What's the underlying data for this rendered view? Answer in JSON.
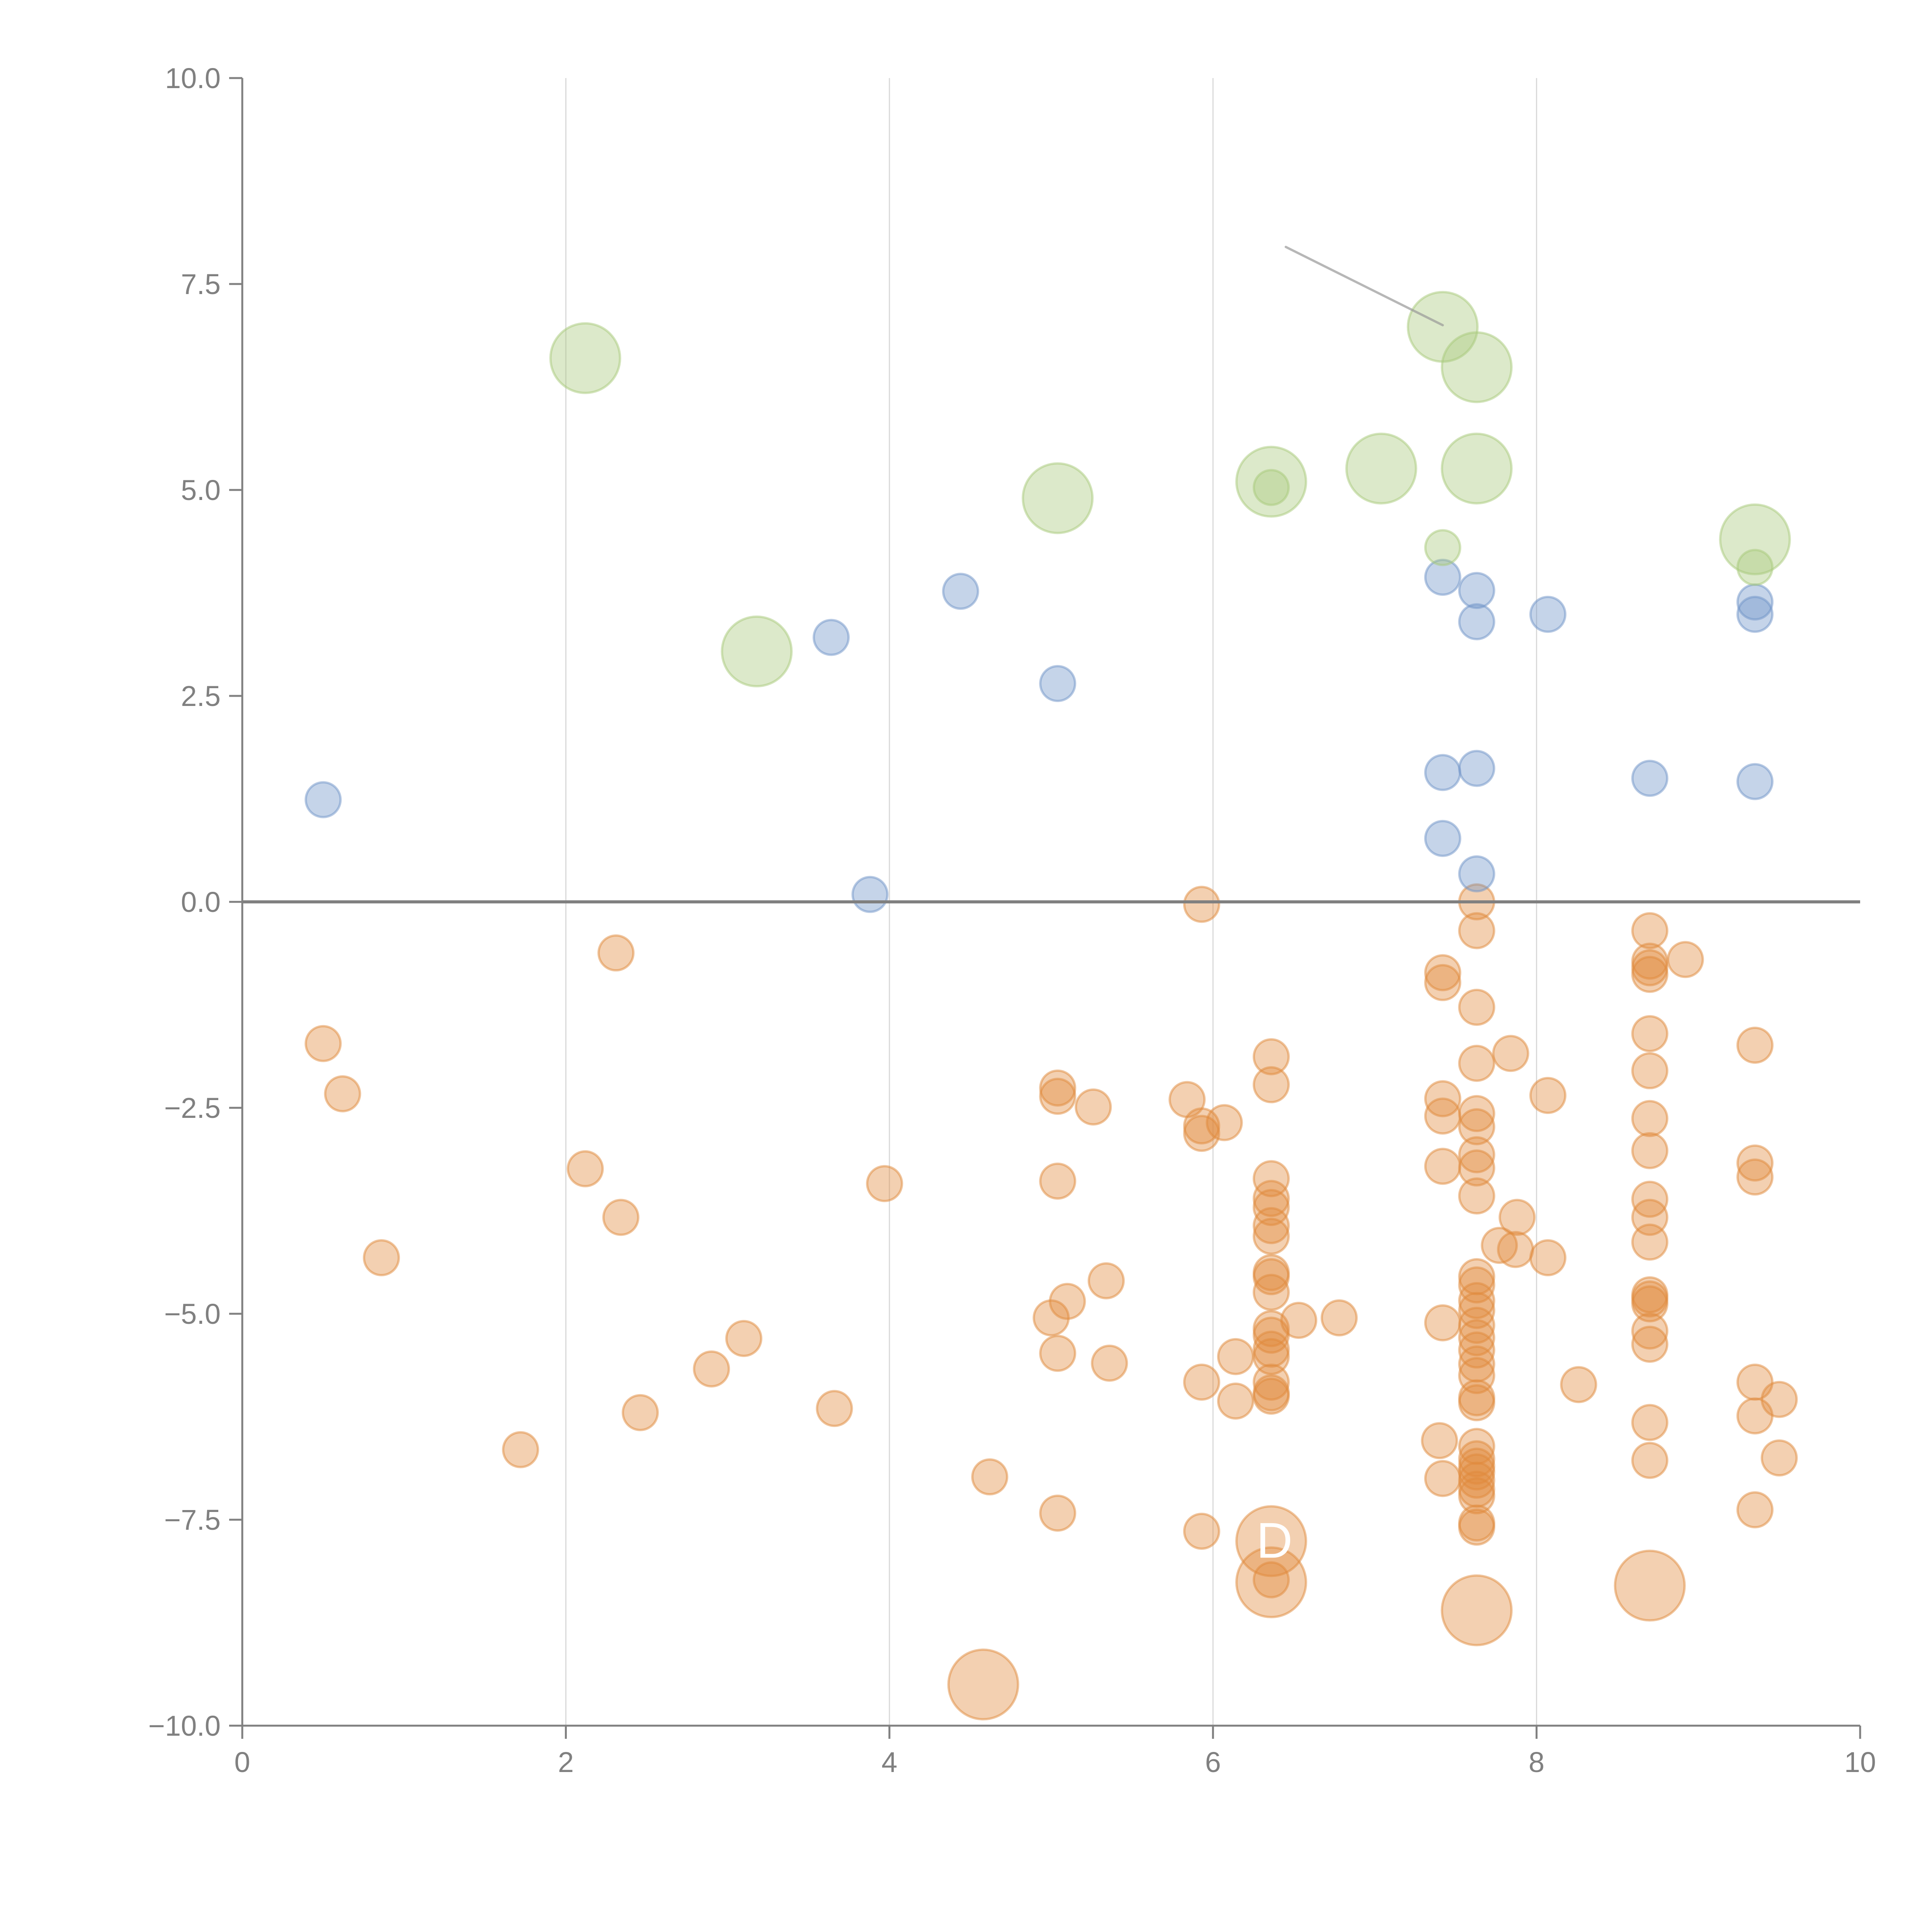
{
  "chart_data": {
    "type": "scatter",
    "title": "",
    "xlabel": "",
    "ylabel": "",
    "xlim": [
      0,
      10
    ],
    "ylim": [
      -10,
      10
    ],
    "x_ticks": [
      0,
      2,
      4,
      6,
      8,
      10
    ],
    "x_tick_labels": [
      "0",
      "2",
      "4",
      "6",
      "8",
      "10"
    ],
    "y_ticks": [
      -10,
      -7.5,
      -5,
      -2.5,
      0,
      2.5,
      5,
      7.5,
      10
    ],
    "y_tick_labels": [
      "−10.0",
      "−7.5",
      "−5.0",
      "−2.5",
      "0.0",
      "2.5",
      "5.0",
      "7.5",
      "10.0"
    ],
    "grid": {
      "vertical_at": [
        2,
        4,
        6,
        8
      ],
      "horizontal_at": []
    },
    "reference_line_y": 0,
    "legend": "none",
    "series": [
      {
        "name": "orange",
        "color": "#e08a3c",
        "size": "small",
        "points": [
          [
            0.5,
            -1.72
          ],
          [
            0.62,
            -2.33
          ],
          [
            0.86,
            -4.32
          ],
          [
            1.72,
            -6.65
          ],
          [
            2.12,
            -3.24
          ],
          [
            2.31,
            -0.62
          ],
          [
            2.34,
            -3.83
          ],
          [
            2.46,
            -6.2
          ],
          [
            2.9,
            -5.67
          ],
          [
            3.1,
            -5.3
          ],
          [
            3.66,
            -6.15
          ],
          [
            3.97,
            -3.42
          ],
          [
            4.62,
            -6.98
          ],
          [
            5.04,
            -2.26
          ],
          [
            5.04,
            -2.36
          ],
          [
            5.04,
            -3.39
          ],
          [
            5.04,
            -5.48
          ],
          [
            5.04,
            -7.42
          ],
          [
            5.0,
            -5.05
          ],
          [
            5.1,
            -4.85
          ],
          [
            5.26,
            -2.49
          ],
          [
            5.34,
            -4.6
          ],
          [
            5.36,
            -5.6
          ],
          [
            5.84,
            -2.4
          ],
          [
            5.93,
            -2.72
          ],
          [
            5.93,
            -2.81
          ],
          [
            5.93,
            -5.83
          ],
          [
            5.93,
            -7.64
          ],
          [
            5.93,
            -0.03
          ],
          [
            6.07,
            -2.68
          ],
          [
            6.14,
            -5.52
          ],
          [
            6.14,
            -6.06
          ],
          [
            6.36,
            -1.88
          ],
          [
            6.36,
            -2.22
          ],
          [
            6.36,
            -3.36
          ],
          [
            6.36,
            -3.6
          ],
          [
            6.36,
            -3.71
          ],
          [
            6.36,
            -3.93
          ],
          [
            6.36,
            -4.06
          ],
          [
            6.36,
            -4.5
          ],
          [
            6.36,
            -4.55
          ],
          [
            6.36,
            -4.74
          ],
          [
            6.36,
            -5.18
          ],
          [
            6.36,
            -5.26
          ],
          [
            6.36,
            -5.43
          ],
          [
            6.36,
            -5.52
          ],
          [
            6.36,
            -5.83
          ],
          [
            6.36,
            -5.96
          ],
          [
            6.36,
            -6.0
          ],
          [
            6.36,
            -8.23
          ],
          [
            6.53,
            -5.08
          ],
          [
            6.78,
            -5.05
          ],
          [
            7.4,
            -6.54
          ],
          [
            7.42,
            -0.86
          ],
          [
            7.42,
            -0.98
          ],
          [
            7.42,
            -2.39
          ],
          [
            7.42,
            -2.6
          ],
          [
            7.42,
            -3.21
          ],
          [
            7.42,
            -5.11
          ],
          [
            7.42,
            -7.0
          ],
          [
            7.63,
            0.0
          ],
          [
            7.63,
            -0.35
          ],
          [
            7.63,
            -1.28
          ],
          [
            7.63,
            -1.96
          ],
          [
            7.63,
            -2.57
          ],
          [
            7.63,
            -2.73
          ],
          [
            7.63,
            -3.07
          ],
          [
            7.63,
            -3.23
          ],
          [
            7.63,
            -3.57
          ],
          [
            7.63,
            -4.55
          ],
          [
            7.63,
            -4.65
          ],
          [
            7.63,
            -4.84
          ],
          [
            7.63,
            -4.96
          ],
          [
            7.63,
            -5.14
          ],
          [
            7.63,
            -5.29
          ],
          [
            7.63,
            -5.44
          ],
          [
            7.63,
            -5.61
          ],
          [
            7.63,
            -5.75
          ],
          [
            7.63,
            -6.02
          ],
          [
            7.63,
            -6.08
          ],
          [
            7.63,
            -6.61
          ],
          [
            7.63,
            -6.76
          ],
          [
            7.63,
            -6.85
          ],
          [
            7.63,
            -6.92
          ],
          [
            7.63,
            -7.02
          ],
          [
            7.63,
            -7.13
          ],
          [
            7.63,
            -7.21
          ],
          [
            7.63,
            -7.54
          ],
          [
            7.63,
            -7.59
          ],
          [
            7.77,
            -4.17
          ],
          [
            7.84,
            -1.84
          ],
          [
            7.87,
            -4.22
          ],
          [
            7.88,
            -3.83
          ],
          [
            8.07,
            -2.35
          ],
          [
            8.07,
            -4.32
          ],
          [
            8.26,
            -5.86
          ],
          [
            8.7,
            -0.35
          ],
          [
            8.7,
            -0.72
          ],
          [
            8.7,
            -0.8
          ],
          [
            8.7,
            -0.88
          ],
          [
            8.7,
            -1.6
          ],
          [
            8.7,
            -2.05
          ],
          [
            8.7,
            -2.63
          ],
          [
            8.7,
            -3.02
          ],
          [
            8.7,
            -3.61
          ],
          [
            8.7,
            -3.83
          ],
          [
            8.7,
            -4.13
          ],
          [
            8.7,
            -4.77
          ],
          [
            8.7,
            -4.82
          ],
          [
            8.7,
            -4.88
          ],
          [
            8.7,
            -5.21
          ],
          [
            8.7,
            -5.37
          ],
          [
            8.7,
            -6.32
          ],
          [
            8.7,
            -6.78
          ],
          [
            8.92,
            -0.7
          ],
          [
            9.35,
            -1.74
          ],
          [
            9.35,
            -3.17
          ],
          [
            9.35,
            -3.34
          ],
          [
            9.35,
            -5.83
          ],
          [
            9.35,
            -6.24
          ],
          [
            9.35,
            -7.38
          ],
          [
            9.5,
            -6.04
          ],
          [
            9.5,
            -6.75
          ]
        ]
      },
      {
        "name": "orange-large",
        "color": "#e08a3c",
        "size": "large",
        "points": [
          [
            4.58,
            -9.5
          ],
          [
            6.36,
            -7.76
          ],
          [
            6.36,
            -8.26
          ],
          [
            7.63,
            -8.6
          ],
          [
            8.7,
            -8.3
          ]
        ]
      },
      {
        "name": "blue",
        "color": "#6f94c8",
        "size": "small",
        "points": [
          [
            0.5,
            1.24
          ],
          [
            3.64,
            3.21
          ],
          [
            3.88,
            0.09
          ],
          [
            4.44,
            3.77
          ],
          [
            5.04,
            2.65
          ],
          [
            7.42,
            3.94
          ],
          [
            7.42,
            1.57
          ],
          [
            7.42,
            0.77
          ],
          [
            7.63,
            3.78
          ],
          [
            7.63,
            3.4
          ],
          [
            7.63,
            1.62
          ],
          [
            7.63,
            0.34
          ],
          [
            8.07,
            3.49
          ],
          [
            8.7,
            1.5
          ],
          [
            9.35,
            3.64
          ],
          [
            9.35,
            3.49
          ],
          [
            9.35,
            1.46
          ]
        ]
      },
      {
        "name": "green",
        "color": "#a8c97a",
        "size": "large",
        "points": [
          [
            2.12,
            6.6
          ],
          [
            3.18,
            3.04
          ],
          [
            5.04,
            4.9
          ],
          [
            6.36,
            5.1
          ],
          [
            7.04,
            5.26
          ],
          [
            7.42,
            6.98
          ],
          [
            7.63,
            6.49
          ],
          [
            7.63,
            5.26
          ],
          [
            9.35,
            4.4
          ]
        ]
      },
      {
        "name": "green-small",
        "color": "#a8c97a",
        "size": "small",
        "points": [
          [
            6.36,
            5.03
          ],
          [
            7.42,
            4.3
          ],
          [
            9.35,
            4.06
          ]
        ]
      }
    ],
    "annotations": [
      {
        "type": "leader-line",
        "from": [
          6.45,
          7.95
        ],
        "to": [
          7.42,
          7.0
        ],
        "color": "#999999"
      },
      {
        "type": "text",
        "text": "D",
        "at": [
          6.38,
          -7.75
        ],
        "color": "#ffffff"
      }
    ]
  }
}
